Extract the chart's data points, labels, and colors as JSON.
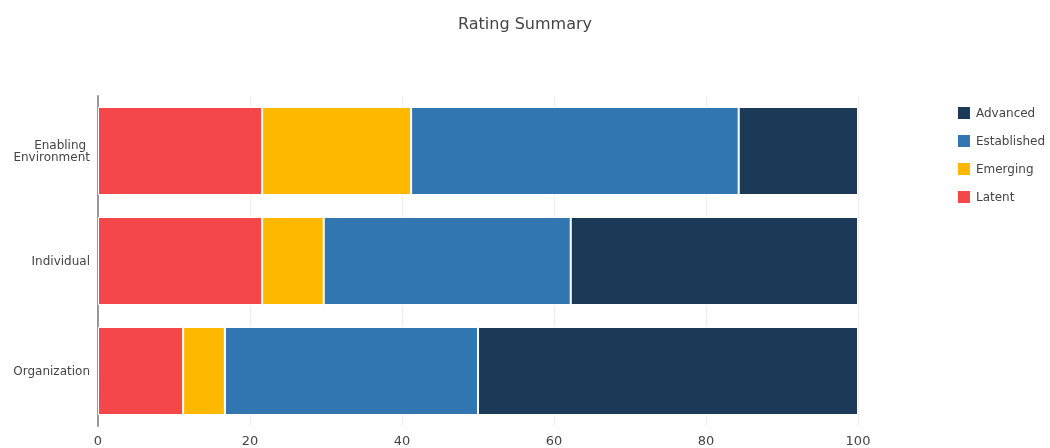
{
  "chart_data": {
    "type": "bar",
    "title": "Rating Summary",
    "orientation": "horizontal",
    "stacked": true,
    "categories": [
      "Enabling Environment",
      "Individual",
      "Organization"
    ],
    "series": [
      {
        "name": "Latent",
        "color": "#f4474a",
        "values": [
          21.6,
          21.6,
          11.2
        ]
      },
      {
        "name": "Emerging",
        "color": "#ffb800",
        "values": [
          19.6,
          8.1,
          5.5
        ]
      },
      {
        "name": "Established",
        "color": "#3276b1",
        "values": [
          43.1,
          32.5,
          33.3
        ]
      },
      {
        "name": "Advanced",
        "color": "#1b3a57",
        "values": [
          15.7,
          37.8,
          50.0
        ]
      }
    ],
    "xlim": [
      0,
      100
    ],
    "xticks": [
      0,
      20,
      40,
      60,
      80,
      100
    ],
    "grid": "x",
    "legend": "top right"
  }
}
